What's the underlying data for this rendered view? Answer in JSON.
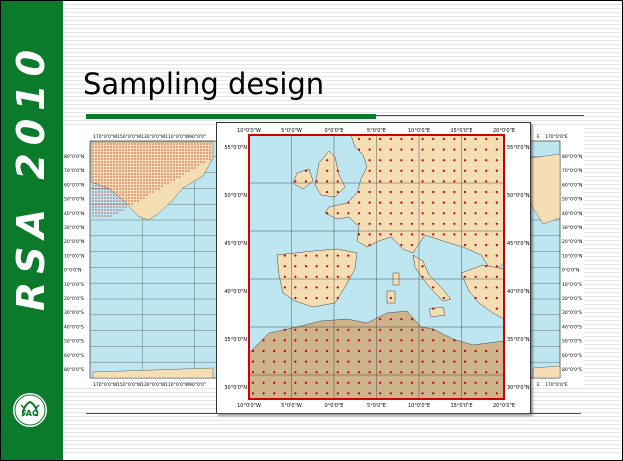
{
  "sidebar": {
    "brand_text": "RSA 2010",
    "logo_icon": "fao-logo-icon"
  },
  "slide": {
    "title": "Sampling design"
  },
  "world_map": {
    "top_labels": [
      "170°0'0\"W",
      "150°0'0\"W",
      "130°0'0\"W",
      "110°0'0\"W",
      "90°0'0\""
    ],
    "top_labels_right": [
      "E",
      "170°0'0\"E"
    ],
    "lat_labels_left": [
      "80°0'0\"N",
      "70°0'0\"N",
      "60°0'0\"N",
      "50°0'0\"N",
      "40°0'0\"N",
      "30°0'0\"N",
      "20°0'0\"N",
      "10°0'0\"N",
      "0°0'0\"N",
      "10°0'0\"S",
      "20°0'0\"S",
      "30°0'0\"S",
      "40°0'0\"S",
      "50°0'0\"S",
      "60°0'0\"S",
      "80°0'0\"S"
    ],
    "lat_labels_right": [
      "80°0'0\"N",
      "70°0'0\"N",
      "60°0'0\"N",
      "50°0'0\"N",
      "40°0'0\"N",
      "30°0'0\"N",
      "20°0'0\"N",
      "10°0'0\"N",
      "0°0'0\"N",
      "10°0'0\"S",
      "20°0'0\"S",
      "30°0'0\"S",
      "40°0'0\"S",
      "50°0'0\"S",
      "60°0'0\"S",
      "80°0'0\"S"
    ]
  },
  "eu_map": {
    "lon_labels": [
      "10°0'0\"W",
      "5°0'0\"W",
      "0°0'0\"E",
      "5°0'0\"E",
      "10°0'0\"E",
      "15°0'0\"E",
      "20°0'0\"E"
    ],
    "lat_labels": [
      "55°0'0\"N",
      "50°0'0\"N",
      "45°0'0\"N",
      "40°0'0\"N",
      "35°0'0\"N",
      "30°0'0\"N"
    ],
    "colors": {
      "sea": "#bde6f0",
      "land": "#f5deb3",
      "africa": "#cdb48c",
      "frame": "#cc0000",
      "dots": "#c00000"
    }
  }
}
